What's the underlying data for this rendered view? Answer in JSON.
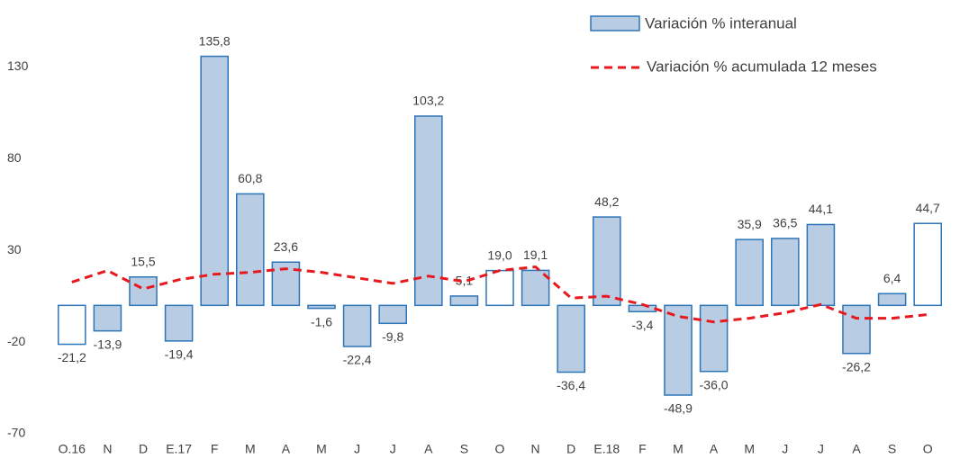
{
  "chart_data": {
    "type": "bar",
    "categories": [
      "O.16",
      "N",
      "D",
      "E.17",
      "F",
      "M",
      "A",
      "M",
      "J",
      "J",
      "A",
      "S",
      "O",
      "N",
      "D",
      "E.18",
      "F",
      "M",
      "A",
      "M",
      "J",
      "J",
      "A",
      "S",
      "O"
    ],
    "series": [
      {
        "name": "Variación % interanual",
        "type": "bar",
        "color": "#b8cce4",
        "edge_color": "#2e75b6",
        "colors": [
          "#ffffff",
          "#b8cce4",
          "#b8cce4",
          "#b8cce4",
          "#b8cce4",
          "#b8cce4",
          "#b8cce4",
          "#b8cce4",
          "#b8cce4",
          "#b8cce4",
          "#b8cce4",
          "#b8cce4",
          "#ffffff",
          "#b8cce4",
          "#b8cce4",
          "#b8cce4",
          "#b8cce4",
          "#b8cce4",
          "#b8cce4",
          "#b8cce4",
          "#b8cce4",
          "#b8cce4",
          "#b8cce4",
          "#b8cce4",
          "#ffffff"
        ],
        "values": [
          -21.2,
          -13.9,
          15.5,
          -19.4,
          135.8,
          60.8,
          23.6,
          -1.6,
          -22.4,
          -9.8,
          103.2,
          5.1,
          19.0,
          19.1,
          -36.4,
          48.2,
          -3.4,
          -48.9,
          -36.0,
          35.9,
          36.5,
          44.1,
          -26.2,
          6.4,
          44.7
        ],
        "value_labels": [
          "-21,2",
          "-13,9",
          "15,5",
          "-19,4",
          "135,8",
          "60,8",
          "23,6",
          "-1,6",
          "-22,4",
          "-9,8",
          "103,2",
          "5,1",
          "19,0",
          "19,1",
          "-36,4",
          "48,2",
          "-3,4",
          "-48,9",
          "-36,0",
          "35,9",
          "36,5",
          "44,1",
          "-26,2",
          "6,4",
          "44,7"
        ]
      },
      {
        "name": "Variación % acumulada 12 meses",
        "type": "line",
        "color": "#e8191e",
        "dashed": true,
        "values": [
          12.7,
          19,
          9,
          14,
          17,
          18,
          20,
          18,
          15,
          12,
          16,
          13,
          19,
          21,
          4,
          5,
          0.5,
          -6,
          -9,
          -7,
          -4,
          0.5,
          -7,
          -7,
          -5
        ]
      }
    ],
    "ylim": [
      -70,
      140
    ],
    "yticks": [
      -70,
      -20,
      30,
      80,
      130
    ],
    "grid": false,
    "legend": "top-right"
  }
}
